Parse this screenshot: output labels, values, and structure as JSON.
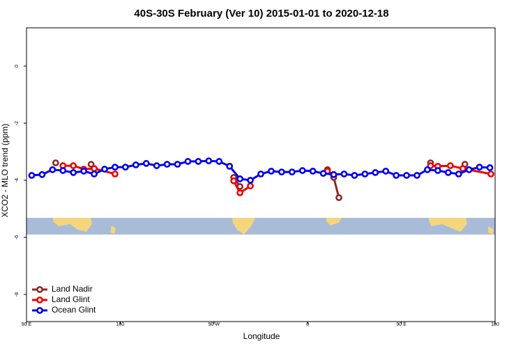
{
  "chart_data": {
    "type": "line",
    "title": "40S-30S February (Ver 10)   2015-01-01 to 2020-12-18",
    "xlabel": "Longitude",
    "ylabel": "XCO2 - MLO trend (ppm)",
    "xlim": [
      90,
      540
    ],
    "xticks": [
      {
        "value": 90,
        "label": "90 E"
      },
      180,
      {
        "value": 270,
        "label": "90 W"
      },
      {
        "value": 360,
        "label": "0"
      },
      {
        "value": 450,
        "label": "90 E"
      },
      {
        "value": 540,
        "label": "180"
      }
    ],
    "ylim": [
      -8.95,
      1.34
    ],
    "yticks": [
      0,
      -2,
      -4,
      -6,
      -8
    ],
    "legend": "bottomleft",
    "grid": false,
    "series": [
      {
        "name": "Land Nadir",
        "color": "#8b2a2a",
        "x": [
          118,
          135,
          152,
          220,
          289,
          295,
          340,
          379,
          385,
          390,
          430,
          478,
          495,
          511
        ],
        "values": [
          -3.39,
          null,
          -3.44,
          null,
          -3.9,
          -4.22,
          null,
          -3.63,
          -3.9,
          -4.61,
          null,
          -3.39,
          null,
          -3.44
        ]
      },
      {
        "name": "Land Glint",
        "color": "#ee0000",
        "x": [
          125,
          135,
          145,
          155,
          175,
          230,
          289,
          295,
          305,
          340,
          379,
          385,
          430,
          478,
          485,
          497,
          509,
          536
        ],
        "values": [
          -3.49,
          -3.49,
          -3.61,
          -3.59,
          -3.78,
          null,
          -4.02,
          -4.44,
          -4.2,
          null,
          -3.68,
          -3.8,
          null,
          -3.49,
          -3.51,
          -3.49,
          -3.59,
          -3.78
        ]
      },
      {
        "name": "Ocean Glint",
        "color": "#0000ee",
        "x": [
          95,
          105,
          115,
          125,
          135,
          145,
          155,
          165,
          175,
          185,
          195,
          205,
          215,
          225,
          235,
          245,
          255,
          265,
          275,
          285,
          295,
          305,
          315,
          325,
          335,
          345,
          355,
          365,
          375,
          385,
          395,
          405,
          415,
          425,
          435,
          445,
          455,
          465,
          475,
          485,
          495,
          505,
          515,
          525,
          535
        ],
        "values": [
          -3.83,
          -3.8,
          -3.63,
          -3.66,
          -3.73,
          -3.68,
          -3.78,
          -3.61,
          -3.54,
          -3.54,
          -3.46,
          -3.41,
          -3.49,
          -3.44,
          -3.44,
          -3.34,
          -3.34,
          -3.32,
          -3.34,
          -3.51,
          -3.95,
          -4.0,
          -3.78,
          -3.68,
          -3.71,
          -3.71,
          -3.66,
          -3.68,
          -3.76,
          -3.8,
          -3.78,
          -3.83,
          -3.78,
          -3.73,
          -3.68,
          -3.83,
          -3.83,
          -3.83,
          -3.63,
          -3.66,
          -3.73,
          -3.78,
          -3.63,
          -3.54,
          -3.56
        ]
      }
    ]
  }
}
